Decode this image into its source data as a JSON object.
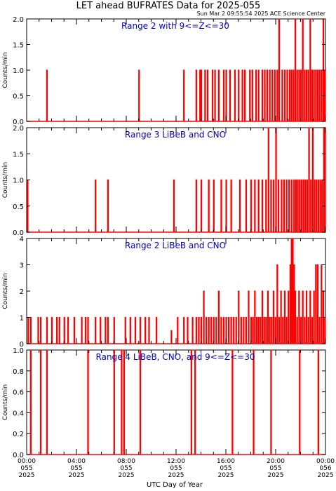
{
  "title": "LET ahead BUFRATES Data for 2025-055",
  "timestamp": "Sun Mar  2 09:55:54 2025 ACE Science Center",
  "xlabel": "UTC Day of Year",
  "trace_color": "#ff0000",
  "title_color": "#0000cc",
  "x_ticks": [
    {
      "t": 0,
      "l1": "00:00",
      "l2": "055",
      "l3": "2025"
    },
    {
      "t": 4,
      "l1": "04:00",
      "l2": "055",
      "l3": "2025"
    },
    {
      "t": 8,
      "l1": "08:00",
      "l2": "055",
      "l3": "2025"
    },
    {
      "t": 12,
      "l1": "12:00",
      "l2": "055",
      "l3": "2025"
    },
    {
      "t": 16,
      "l1": "16:00",
      "l2": "055",
      "l3": "2025"
    },
    {
      "t": 20,
      "l1": "20:00",
      "l2": "055",
      "l3": "2025"
    },
    {
      "t": 24,
      "l1": "00:00",
      "l2": "056",
      "l3": "2025"
    }
  ],
  "chart_data": [
    {
      "type": "line",
      "title": "Range 2 with 9<=Z<=30",
      "ylabel": "Counts/min",
      "xlim": [
        0,
        24
      ],
      "ylim": [
        0,
        2
      ],
      "y_ticks": [
        "0.0",
        "0.5",
        "1.0",
        "1.5",
        "2.0"
      ],
      "y_tick_values": [
        0,
        0.5,
        1,
        1.5,
        2
      ],
      "x_unit": "hours UTC",
      "events": [
        {
          "t": 1.6,
          "v": 1
        },
        {
          "t": 9.0,
          "v": 1
        },
        {
          "t": 12.6,
          "v": 1
        },
        {
          "t": 13.6,
          "v": 1
        },
        {
          "t": 13.9,
          "v": 1
        },
        {
          "t": 14.0,
          "v": 1
        },
        {
          "t": 14.3,
          "v": 1
        },
        {
          "t": 14.5,
          "v": 1
        },
        {
          "t": 14.9,
          "v": 1
        },
        {
          "t": 15.1,
          "v": 1
        },
        {
          "t": 15.4,
          "v": 1
        },
        {
          "t": 15.8,
          "v": 1
        },
        {
          "t": 16.0,
          "v": 1
        },
        {
          "t": 16.3,
          "v": 1
        },
        {
          "t": 16.7,
          "v": 1
        },
        {
          "t": 17.0,
          "v": 1
        },
        {
          "t": 17.3,
          "v": 1
        },
        {
          "t": 17.5,
          "v": 1
        },
        {
          "t": 17.9,
          "v": 1
        },
        {
          "t": 18.1,
          "v": 1
        },
        {
          "t": 18.4,
          "v": 1
        },
        {
          "t": 18.6,
          "v": 1
        },
        {
          "t": 18.9,
          "v": 1
        },
        {
          "t": 19.1,
          "v": 1
        },
        {
          "t": 19.3,
          "v": 1
        },
        {
          "t": 19.5,
          "v": 1
        },
        {
          "t": 19.7,
          "v": 1
        },
        {
          "t": 19.9,
          "v": 1
        },
        {
          "t": 20.1,
          "v": 1
        },
        {
          "t": 20.25,
          "v": 2
        },
        {
          "t": 20.5,
          "v": 1
        },
        {
          "t": 20.7,
          "v": 1
        },
        {
          "t": 20.9,
          "v": 1
        },
        {
          "t": 21.1,
          "v": 1
        },
        {
          "t": 21.25,
          "v": 1
        },
        {
          "t": 21.4,
          "v": 1
        },
        {
          "t": 21.55,
          "v": 2
        },
        {
          "t": 21.7,
          "v": 1
        },
        {
          "t": 21.85,
          "v": 1
        },
        {
          "t": 22.0,
          "v": 1
        },
        {
          "t": 22.15,
          "v": 2
        },
        {
          "t": 22.3,
          "v": 1
        },
        {
          "t": 22.45,
          "v": 1
        },
        {
          "t": 22.6,
          "v": 1
        },
        {
          "t": 22.75,
          "v": 2
        },
        {
          "t": 22.9,
          "v": 1
        },
        {
          "t": 23.05,
          "v": 1
        },
        {
          "t": 23.2,
          "v": 1
        },
        {
          "t": 23.35,
          "v": 1
        },
        {
          "t": 23.5,
          "v": 1
        },
        {
          "t": 23.65,
          "v": 1
        },
        {
          "t": 23.8,
          "v": 2
        },
        {
          "t": 23.92,
          "v": 1
        }
      ]
    },
    {
      "type": "line",
      "title": "Range 3 LiBeB and CNO",
      "ylabel": "Counts/min",
      "xlim": [
        0,
        24
      ],
      "ylim": [
        0,
        2
      ],
      "y_ticks": [
        "0.0",
        "0.5",
        "1.0",
        "1.5",
        "2.0"
      ],
      "y_tick_values": [
        0,
        0.5,
        1,
        1.5,
        2
      ],
      "x_unit": "hours UTC",
      "events": [
        {
          "t": 0.05,
          "v": 1
        },
        {
          "t": 5.5,
          "v": 1
        },
        {
          "t": 6.5,
          "v": 1
        },
        {
          "t": 11.8,
          "v": 1
        },
        {
          "t": 13.6,
          "v": 1
        },
        {
          "t": 14.0,
          "v": 1
        },
        {
          "t": 14.6,
          "v": 1
        },
        {
          "t": 15.0,
          "v": 1
        },
        {
          "t": 15.6,
          "v": 1
        },
        {
          "t": 16.0,
          "v": 1
        },
        {
          "t": 16.4,
          "v": 1
        },
        {
          "t": 17.1,
          "v": 1
        },
        {
          "t": 17.6,
          "v": 1
        },
        {
          "t": 18.0,
          "v": 1
        },
        {
          "t": 18.3,
          "v": 1
        },
        {
          "t": 18.6,
          "v": 1
        },
        {
          "t": 18.9,
          "v": 1
        },
        {
          "t": 19.2,
          "v": 1
        },
        {
          "t": 19.4,
          "v": 2
        },
        {
          "t": 19.6,
          "v": 1
        },
        {
          "t": 19.8,
          "v": 1
        },
        {
          "t": 20.0,
          "v": 2
        },
        {
          "t": 20.2,
          "v": 1
        },
        {
          "t": 20.45,
          "v": 1
        },
        {
          "t": 20.65,
          "v": 1
        },
        {
          "t": 20.85,
          "v": 1
        },
        {
          "t": 21.05,
          "v": 1
        },
        {
          "t": 21.25,
          "v": 1
        },
        {
          "t": 21.45,
          "v": 1
        },
        {
          "t": 21.6,
          "v": 1
        },
        {
          "t": 21.75,
          "v": 1
        },
        {
          "t": 21.9,
          "v": 1
        },
        {
          "t": 22.05,
          "v": 1
        },
        {
          "t": 22.2,
          "v": 1
        },
        {
          "t": 22.35,
          "v": 1
        },
        {
          "t": 22.5,
          "v": 1
        },
        {
          "t": 22.65,
          "v": 2
        },
        {
          "t": 22.8,
          "v": 1
        },
        {
          "t": 22.95,
          "v": 2
        },
        {
          "t": 23.1,
          "v": 1
        },
        {
          "t": 23.25,
          "v": 1
        },
        {
          "t": 23.4,
          "v": 1
        },
        {
          "t": 23.55,
          "v": 1
        },
        {
          "t": 23.7,
          "v": 1
        },
        {
          "t": 23.85,
          "v": 2
        },
        {
          "t": 23.95,
          "v": 2
        }
      ]
    },
    {
      "type": "line",
      "title": "Range 2 LiBeB and CNO",
      "ylabel": "Counts/min",
      "xlim": [
        0,
        24
      ],
      "ylim": [
        0,
        4
      ],
      "y_ticks": [
        "0",
        "1",
        "2",
        "3",
        "4"
      ],
      "y_tick_values": [
        0,
        1,
        2,
        3,
        4
      ],
      "x_unit": "hours UTC",
      "events": [
        {
          "t": 0.1,
          "v": 1
        },
        {
          "t": 0.3,
          "v": 1
        },
        {
          "t": 0.9,
          "v": 1
        },
        {
          "t": 1.1,
          "v": 1
        },
        {
          "t": 1.6,
          "v": 1
        },
        {
          "t": 2.0,
          "v": 1
        },
        {
          "t": 2.4,
          "v": 1
        },
        {
          "t": 2.6,
          "v": 1
        },
        {
          "t": 3.0,
          "v": 1
        },
        {
          "t": 3.3,
          "v": 1
        },
        {
          "t": 3.8,
          "v": 1
        },
        {
          "t": 4.4,
          "v": 1
        },
        {
          "t": 4.7,
          "v": 1
        },
        {
          "t": 4.9,
          "v": 1
        },
        {
          "t": 5.5,
          "v": 1
        },
        {
          "t": 5.9,
          "v": 1
        },
        {
          "t": 6.3,
          "v": 1
        },
        {
          "t": 6.5,
          "v": 1
        },
        {
          "t": 7.0,
          "v": 1
        },
        {
          "t": 7.9,
          "v": 1
        },
        {
          "t": 8.3,
          "v": 1
        },
        {
          "t": 8.7,
          "v": 1
        },
        {
          "t": 9.1,
          "v": 1
        },
        {
          "t": 9.5,
          "v": 1
        },
        {
          "t": 9.8,
          "v": 1
        },
        {
          "t": 10.4,
          "v": 1
        },
        {
          "t": 11.6,
          "v": 0.5
        },
        {
          "t": 12.1,
          "v": 1
        },
        {
          "t": 12.6,
          "v": 1
        },
        {
          "t": 12.9,
          "v": 1
        },
        {
          "t": 13.3,
          "v": 1
        },
        {
          "t": 13.6,
          "v": 1
        },
        {
          "t": 13.8,
          "v": 1
        },
        {
          "t": 14.0,
          "v": 1
        },
        {
          "t": 14.2,
          "v": 2
        },
        {
          "t": 14.4,
          "v": 1
        },
        {
          "t": 14.6,
          "v": 1
        },
        {
          "t": 14.8,
          "v": 1
        },
        {
          "t": 15.0,
          "v": 1
        },
        {
          "t": 15.2,
          "v": 1
        },
        {
          "t": 15.4,
          "v": 2
        },
        {
          "t": 15.6,
          "v": 1
        },
        {
          "t": 15.8,
          "v": 1
        },
        {
          "t": 16.0,
          "v": 1
        },
        {
          "t": 16.2,
          "v": 1
        },
        {
          "t": 16.4,
          "v": 1
        },
        {
          "t": 16.6,
          "v": 1
        },
        {
          "t": 16.8,
          "v": 1
        },
        {
          "t": 17.0,
          "v": 2
        },
        {
          "t": 17.2,
          "v": 1
        },
        {
          "t": 17.4,
          "v": 1
        },
        {
          "t": 17.6,
          "v": 1
        },
        {
          "t": 17.8,
          "v": 2
        },
        {
          "t": 18.0,
          "v": 1
        },
        {
          "t": 18.15,
          "v": 1
        },
        {
          "t": 18.3,
          "v": 2
        },
        {
          "t": 18.45,
          "v": 1
        },
        {
          "t": 18.6,
          "v": 1
        },
        {
          "t": 18.75,
          "v": 1
        },
        {
          "t": 18.9,
          "v": 2
        },
        {
          "t": 19.05,
          "v": 1
        },
        {
          "t": 19.2,
          "v": 1
        },
        {
          "t": 19.35,
          "v": 2
        },
        {
          "t": 19.5,
          "v": 1
        },
        {
          "t": 19.65,
          "v": 1
        },
        {
          "t": 19.8,
          "v": 2
        },
        {
          "t": 19.95,
          "v": 1
        },
        {
          "t": 20.1,
          "v": 3
        },
        {
          "t": 20.25,
          "v": 1
        },
        {
          "t": 20.4,
          "v": 2
        },
        {
          "t": 20.55,
          "v": 1
        },
        {
          "t": 20.7,
          "v": 2
        },
        {
          "t": 20.85,
          "v": 1
        },
        {
          "t": 21.0,
          "v": 2
        },
        {
          "t": 21.15,
          "v": 3
        },
        {
          "t": 21.25,
          "v": 4
        },
        {
          "t": 21.35,
          "v": 4
        },
        {
          "t": 21.45,
          "v": 3
        },
        {
          "t": 21.55,
          "v": 2
        },
        {
          "t": 21.7,
          "v": 1
        },
        {
          "t": 21.85,
          "v": 2
        },
        {
          "t": 22.0,
          "v": 1
        },
        {
          "t": 22.15,
          "v": 2
        },
        {
          "t": 22.3,
          "v": 1
        },
        {
          "t": 22.45,
          "v": 2
        },
        {
          "t": 22.6,
          "v": 1
        },
        {
          "t": 22.75,
          "v": 2
        },
        {
          "t": 22.9,
          "v": 1
        },
        {
          "t": 23.05,
          "v": 2
        },
        {
          "t": 23.2,
          "v": 3
        },
        {
          "t": 23.35,
          "v": 3
        },
        {
          "t": 23.5,
          "v": 1
        },
        {
          "t": 23.65,
          "v": 3
        },
        {
          "t": 23.8,
          "v": 2
        },
        {
          "t": 23.93,
          "v": 1
        }
      ]
    },
    {
      "type": "line",
      "title": "Range 4 LiBeB, CNO, and 9<=Z<=30",
      "ylabel": "Counts/min",
      "xlim": [
        0,
        24
      ],
      "ylim": [
        0,
        1
      ],
      "y_ticks": [
        "0.0",
        "0.2",
        "0.4",
        "0.6",
        "0.8",
        "1.0"
      ],
      "y_tick_values": [
        0,
        0.2,
        0.4,
        0.6,
        0.8,
        1.0
      ],
      "x_unit": "hours UTC",
      "events": [
        {
          "t": 0.3,
          "v": 1
        },
        {
          "t": 1.1,
          "v": 1
        },
        {
          "t": 1.6,
          "v": 1
        },
        {
          "t": 4.9,
          "v": 1
        },
        {
          "t": 7.0,
          "v": 1
        },
        {
          "t": 7.6,
          "v": 1
        },
        {
          "t": 7.8,
          "v": 1
        },
        {
          "t": 9.1,
          "v": 1
        },
        {
          "t": 13.2,
          "v": 1
        },
        {
          "t": 13.5,
          "v": 1
        },
        {
          "t": 16.5,
          "v": 1
        },
        {
          "t": 18.2,
          "v": 1
        },
        {
          "t": 19.6,
          "v": 1
        },
        {
          "t": 21.9,
          "v": 1
        },
        {
          "t": 23.4,
          "v": 1
        }
      ]
    }
  ]
}
